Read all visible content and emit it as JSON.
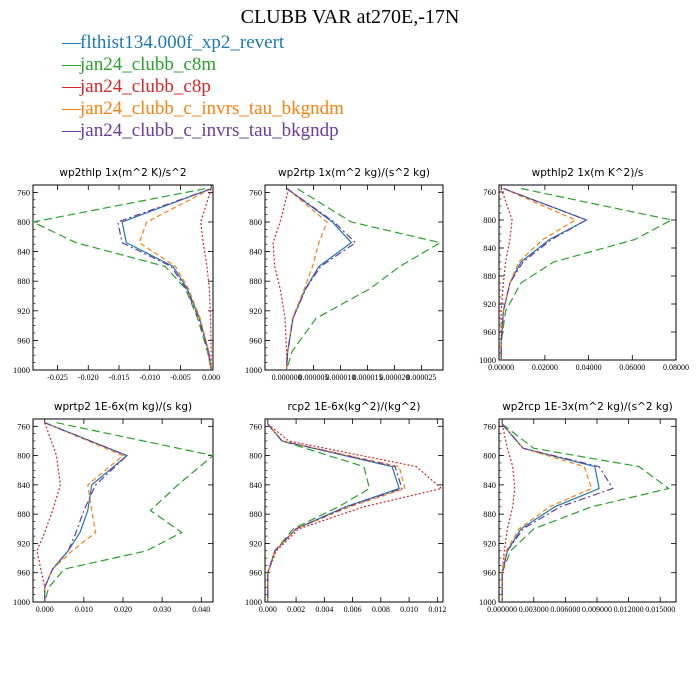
{
  "title": "CLUBB VAR at270E,-17N",
  "legend": [
    {
      "label": "flthist134.000f_xp2_revert",
      "color": "#1f77b4",
      "dash": "—"
    },
    {
      "label": "jan24_clubb_c8m",
      "color": "#2ca02c",
      "dash": "—"
    },
    {
      "label": "jan24_clubb_c8p",
      "color": "#d62728",
      "dash": "—"
    },
    {
      "label": "jan24_clubb_c_invrs_tau_bkgndm",
      "color": "#ff7f0e",
      "dash": "—"
    },
    {
      "label": "jan24_clubb_c_invrs_tau_bkgndp",
      "color": "#6a3d9a",
      "dash": "—"
    }
  ],
  "chart_data": [
    {
      "type": "line",
      "title": "wp2thlp   1x(m^2 K)/s^2",
      "xlim": [
        -0.029,
        0.0003
      ],
      "x_ticks": [
        -0.025,
        -0.02,
        -0.015,
        -0.01,
        -0.005,
        0.0
      ],
      "x_tick_labels": [
        "-0.025",
        "-0.020",
        "-0.015",
        "-0.010",
        "-0.005",
        "0.000"
      ],
      "ylim": [
        1000,
        750
      ],
      "y_ticks": [
        760,
        800,
        840,
        880,
        920,
        960,
        1000
      ],
      "y_tick_labels": [
        "760",
        "800",
        "840",
        "880",
        "920",
        "960",
        "1000"
      ],
      "levels": [
        755,
        800,
        828,
        860,
        890,
        930,
        975,
        1000
      ],
      "series": [
        {
          "color": "#1f77b4",
          "values": [
            0.0,
            -0.0145,
            -0.0138,
            -0.0062,
            -0.0039,
            -0.0019,
            -0.0004,
            0.0
          ]
        },
        {
          "color": "#2ca02c",
          "values": [
            -0.001,
            -0.029,
            -0.022,
            -0.0075,
            -0.0042,
            -0.0022,
            -0.0006,
            0.0
          ]
        },
        {
          "color": "#d62728",
          "values": [
            0.0,
            -0.0017,
            -0.0013,
            -0.0007,
            -0.0003,
            -0.0001,
            0.0,
            0.0
          ]
        },
        {
          "color": "#ff7f0e",
          "values": [
            0.0,
            -0.0105,
            -0.0117,
            -0.0058,
            -0.0037,
            -0.0018,
            -0.0004,
            0.0
          ]
        },
        {
          "color": "#6a3d9a",
          "values": [
            0.0,
            -0.0152,
            -0.0145,
            -0.0065,
            -0.0041,
            -0.002,
            -0.0005,
            0.0
          ]
        }
      ]
    },
    {
      "type": "line",
      "title": "wp2rtp   1x(m^2 kg)/(s^2 kg)",
      "xlim": [
        -4e-06,
        2.9e-05
      ],
      "x_ticks": [
        0.0,
        5e-06,
        1e-05,
        1.5e-05,
        2e-05,
        2.5e-05
      ],
      "x_tick_labels": [
        "0.000000",
        "0.000005",
        "0.000010",
        "0.000015",
        "0.000020",
        "0.000025"
      ],
      "ylim": [
        1000,
        750
      ],
      "y_ticks": [
        760,
        800,
        840,
        880,
        920,
        960,
        1000
      ],
      "y_tick_labels": [
        "760",
        "800",
        "840",
        "880",
        "920",
        "960",
        "1000"
      ],
      "levels": [
        755,
        800,
        828,
        860,
        890,
        930,
        975,
        1000
      ],
      "series": [
        {
          "color": "#1f77b4",
          "values": [
            1e-07,
            8.5e-06,
            1.2e-05,
            6e-06,
            3.5e-06,
            1.2e-06,
            2e-07,
            0.0
          ],
          "levels": [
            755,
            800,
            828,
            860,
            890,
            930,
            975,
            1000
          ]
        },
        {
          "color": "#2ca02c",
          "values": [
            2e-06,
            1.2e-05,
            2.85e-05,
            2.1e-05,
            1.55e-05,
            5.5e-06,
            1e-06,
            0.0
          ]
        },
        {
          "color": "#d62728",
          "values": [
            4e-07,
            -1.2e-06,
            -2.5e-06,
            -2.2e-06,
            -1.2e-06,
            -3e-07,
            0.0,
            0.0
          ]
        },
        {
          "color": "#ff7f0e",
          "values": [
            1e-07,
            7.5e-06,
            6e-06,
            4.8e-06,
            3.3e-06,
            1.1e-06,
            2e-07,
            0.0
          ]
        },
        {
          "color": "#6a3d9a",
          "values": [
            1e-07,
            8.8e-06,
            1.28e-05,
            6.3e-06,
            3.6e-06,
            1.2e-06,
            2e-07,
            0.0
          ]
        }
      ]
    },
    {
      "type": "line",
      "title": "wpthlp2   1x(m K^2)/s",
      "xlim": [
        -0.001,
        0.08
      ],
      "x_ticks": [
        0.0,
        0.02,
        0.04,
        0.06,
        0.08
      ],
      "x_tick_labels": [
        "0.00000",
        "0.02000",
        "0.04000",
        "0.06000",
        "0.08000"
      ],
      "ylim": [
        1000,
        750
      ],
      "y_ticks": [
        760,
        800,
        840,
        880,
        920,
        960,
        1000
      ],
      "y_tick_labels": [
        "760",
        "800",
        "840",
        "880",
        "920",
        "960",
        "1000"
      ],
      "levels": [
        755,
        800,
        828,
        860,
        890,
        930,
        975,
        1000
      ],
      "series": [
        {
          "color": "#1f77b4",
          "values": [
            0.001,
            0.039,
            0.022,
            0.009,
            0.004,
            0.001,
            0.0,
            0.0
          ]
        },
        {
          "color": "#2ca02c",
          "values": [
            0.009,
            0.078,
            0.061,
            0.024,
            0.009,
            0.002,
            0.0,
            0.0
          ]
        },
        {
          "color": "#d62728",
          "values": [
            0.0,
            0.005,
            0.004,
            0.002,
            0.001,
            0.0,
            0.0,
            0.0
          ]
        },
        {
          "color": "#ff7f0e",
          "values": [
            0.001,
            0.034,
            0.019,
            0.008,
            0.004,
            0.001,
            0.0,
            0.0
          ]
        },
        {
          "color": "#6a3d9a",
          "values": [
            0.001,
            0.039,
            0.023,
            0.01,
            0.004,
            0.001,
            0.0,
            0.0
          ]
        }
      ]
    },
    {
      "type": "line",
      "title": "wprtp2   1E-6x(m kg)/(s kg)",
      "xlim": [
        -0.003,
        0.043
      ],
      "x_ticks": [
        0.0,
        0.01,
        0.02,
        0.03,
        0.04
      ],
      "x_tick_labels": [
        "0.000",
        "0.010",
        "0.020",
        "0.030",
        "0.040"
      ],
      "ylim": [
        1000,
        750
      ],
      "y_ticks": [
        760,
        800,
        840,
        880,
        920,
        960,
        1000
      ],
      "y_tick_labels": [
        "760",
        "800",
        "840",
        "880",
        "920",
        "960",
        "1000"
      ],
      "levels": [
        755,
        800,
        840,
        875,
        905,
        930,
        955,
        980,
        1000
      ],
      "series": [
        {
          "color": "#1f77b4",
          "values": [
            0.0,
            0.021,
            0.012,
            0.011,
            0.009,
            0.006,
            0.002,
            0.0,
            0.0
          ]
        },
        {
          "color": "#2ca02c",
          "values": [
            0.003,
            0.043,
            0.034,
            0.027,
            0.035,
            0.026,
            0.005,
            0.001,
            0.0
          ]
        },
        {
          "color": "#d62728",
          "values": [
            0.0,
            0.003,
            0.004,
            0.002,
            0.0,
            -0.002,
            -0.001,
            0.0,
            0.0
          ]
        },
        {
          "color": "#ff7f0e",
          "values": [
            0.0,
            0.02,
            0.011,
            0.012,
            0.013,
            0.007,
            0.002,
            0.0,
            0.0
          ]
        },
        {
          "color": "#6a3d9a",
          "values": [
            0.0,
            0.021,
            0.013,
            0.01,
            0.008,
            0.006,
            0.002,
            0.0,
            0.0
          ]
        }
      ]
    },
    {
      "type": "line",
      "title": "rcp2   1E-6x(kg^2)/(kg^2)",
      "xlim": [
        -0.0002,
        0.0124
      ],
      "x_ticks": [
        0.0,
        0.002,
        0.004,
        0.006,
        0.008,
        0.01,
        0.012
      ],
      "x_tick_labels": [
        "0.000",
        "0.002",
        "0.004",
        "0.006",
        "0.008",
        "0.010",
        "0.012"
      ],
      "ylim": [
        1000,
        750
      ],
      "y_ticks": [
        760,
        800,
        840,
        880,
        920,
        960,
        1000
      ],
      "y_tick_labels": [
        "760",
        "800",
        "840",
        "880",
        "920",
        "960",
        "1000"
      ],
      "levels": [
        757,
        780,
        815,
        845,
        870,
        900,
        930,
        960,
        1000
      ],
      "series": [
        {
          "color": "#1f77b4",
          "values": [
            0.0,
            0.001,
            0.0088,
            0.0093,
            0.0055,
            0.002,
            0.0005,
            0.0,
            0.0
          ]
        },
        {
          "color": "#2ca02c",
          "values": [
            0.0,
            0.001,
            0.0068,
            0.0072,
            0.005,
            0.0018,
            0.0005,
            0.0,
            0.0
          ]
        },
        {
          "color": "#d62728",
          "values": [
            0.0,
            0.0015,
            0.0105,
            0.0123,
            0.0068,
            0.0022,
            0.0006,
            0.0,
            0.0
          ]
        },
        {
          "color": "#ff7f0e",
          "values": [
            0.0,
            0.001,
            0.0093,
            0.0097,
            0.0058,
            0.002,
            0.0005,
            0.0,
            0.0
          ]
        },
        {
          "color": "#6a3d9a",
          "values": [
            0.0,
            0.001,
            0.009,
            0.0095,
            0.0056,
            0.002,
            0.0005,
            0.0,
            0.0
          ]
        }
      ]
    },
    {
      "type": "line",
      "title": "wp2rcp   1E-3x(m^2 kg)/(s^2 kg)",
      "xlim": [
        -0.0003,
        0.0165
      ],
      "x_ticks": [
        0.0,
        0.003,
        0.006,
        0.009,
        0.012,
        0.015
      ],
      "x_tick_labels": [
        "0.000000",
        "0.003000",
        "0.006000",
        "0.009000",
        "0.012000",
        "0.015000"
      ],
      "ylim": [
        1000,
        750
      ],
      "y_ticks": [
        760,
        800,
        840,
        880,
        920,
        960,
        1000
      ],
      "y_tick_labels": [
        "760",
        "800",
        "840",
        "880",
        "920",
        "960",
        "1000"
      ],
      "levels": [
        757,
        790,
        815,
        845,
        870,
        900,
        930,
        960,
        1000
      ],
      "series": [
        {
          "color": "#1f77b4",
          "values": [
            0.0,
            0.002,
            0.0088,
            0.0092,
            0.005,
            0.0018,
            0.0005,
            0.0,
            0.0
          ]
        },
        {
          "color": "#2ca02c",
          "values": [
            0.0,
            0.003,
            0.013,
            0.0158,
            0.0085,
            0.003,
            0.0008,
            0.0,
            0.0
          ]
        },
        {
          "color": "#d62728",
          "values": [
            0.0,
            0.0005,
            0.001,
            0.0012,
            0.001,
            0.0005,
            0.0002,
            0.0,
            0.0
          ]
        },
        {
          "color": "#ff7f0e",
          "values": [
            0.0,
            0.002,
            0.0078,
            0.0085,
            0.0045,
            0.0016,
            0.0004,
            0.0,
            0.0
          ]
        },
        {
          "color": "#6a3d9a",
          "values": [
            0.0,
            0.002,
            0.0092,
            0.0105,
            0.0055,
            0.002,
            0.0005,
            0.0,
            0.0
          ]
        }
      ]
    }
  ]
}
